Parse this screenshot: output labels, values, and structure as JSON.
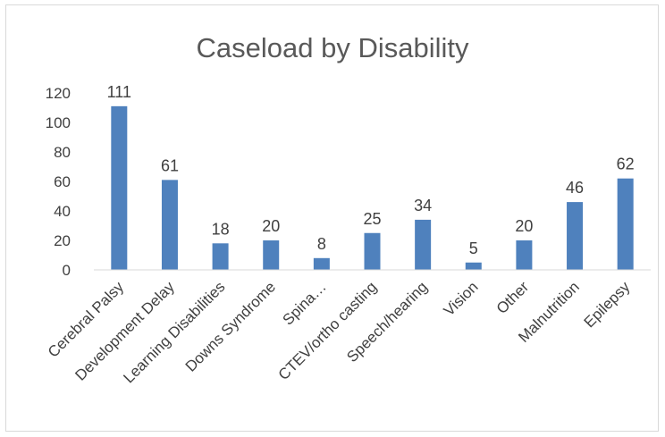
{
  "chart_data": {
    "type": "bar",
    "title": "Caseload by Disability",
    "xlabel": "",
    "ylabel": "",
    "categories": [
      "Cerebral Palsy",
      "Development Delay",
      "Learning Disabilities",
      "Downs Syndrome",
      "Spina…",
      "CTEV/ortho casting",
      "Speech/hearing",
      "Vision",
      "Other",
      "Malnutrition",
      "Epilepsy"
    ],
    "values": [
      111,
      61,
      18,
      20,
      8,
      25,
      34,
      5,
      20,
      46,
      62
    ],
    "data_labels": [
      "111",
      "61",
      "18",
      "20",
      "8",
      "25",
      "34",
      "5",
      "20",
      "46",
      "62"
    ],
    "ylim": [
      0,
      120
    ],
    "y_ticks": [
      "0",
      "20",
      "40",
      "60",
      "80",
      "100",
      "120"
    ],
    "y_tick_values": [
      0,
      20,
      40,
      60,
      80,
      100,
      120
    ],
    "grid": false,
    "legend": "none",
    "colors": {
      "bar": "#4f81bd",
      "axis": "#d9d9d9",
      "text": "#404040",
      "title": "#595959"
    }
  }
}
